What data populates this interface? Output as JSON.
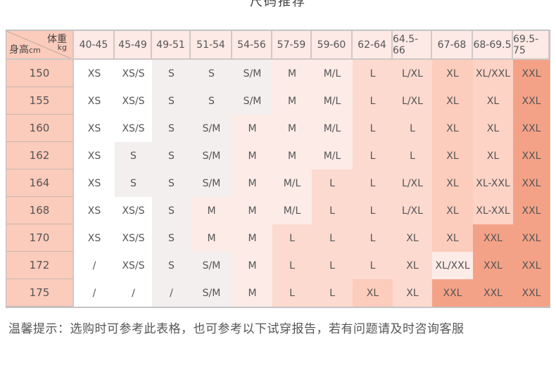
{
  "title": "尺码推荐",
  "corner": {
    "weight_label": "体重",
    "weight_unit": "kg",
    "height_label": "身高",
    "height_unit": "cm"
  },
  "weights": [
    "40-45",
    "45-49",
    "49-51",
    "51-54",
    "54-56",
    "57-59",
    "59-60",
    "62-64",
    "64.5-66",
    "67-68",
    "68-69.5",
    "69.5-75"
  ],
  "colors": {
    "w": "#ffffff",
    "g": "#f3efee",
    "p1": "#fdebe7",
    "p3": "#fcdad0",
    "p4": "#fcccbc",
    "p4b": "#fdd3c6",
    "p5": "#f4a287"
  },
  "rows": [
    {
      "height": "150",
      "sizes": [
        "XS",
        "XS/S",
        "S",
        "S",
        "S/M",
        "M",
        "M/L",
        "L",
        "L/XL",
        "XL",
        "XL/XXL",
        "XXL"
      ],
      "bg": [
        "w",
        "w",
        "g",
        "g",
        "g",
        "p1",
        "p1",
        "p3",
        "p3",
        "p4",
        "p4b",
        "p5"
      ]
    },
    {
      "height": "155",
      "sizes": [
        "XS",
        "XS/S",
        "S",
        "S",
        "S/M",
        "M",
        "M/L",
        "L",
        "L/XL",
        "XL",
        "XL",
        "XXL"
      ],
      "bg": [
        "w",
        "w",
        "g",
        "g",
        "g",
        "p1",
        "p1",
        "p3",
        "p3",
        "p4",
        "p4b",
        "p5"
      ]
    },
    {
      "height": "160",
      "sizes": [
        "XS",
        "XS/S",
        "S",
        "S/M",
        "M",
        "M",
        "M/L",
        "L",
        "L",
        "XL",
        "XL",
        "XXL"
      ],
      "bg": [
        "w",
        "w",
        "g",
        "g",
        "p1",
        "p1",
        "p1",
        "p3",
        "p3",
        "p4",
        "p4b",
        "p5"
      ]
    },
    {
      "height": "162",
      "sizes": [
        "XS",
        "S",
        "S",
        "S/M",
        "M",
        "M",
        "M/L",
        "L",
        "L",
        "XL",
        "XL",
        "XXL"
      ],
      "bg": [
        "w",
        "g",
        "g",
        "g",
        "p1",
        "p1",
        "p1",
        "p3",
        "p3",
        "p4",
        "p4b",
        "p5"
      ]
    },
    {
      "height": "164",
      "sizes": [
        "XS",
        "S",
        "S",
        "S/M",
        "M",
        "M/L",
        "L",
        "L",
        "L/XL",
        "XL",
        "XL-XXL",
        "XXL"
      ],
      "bg": [
        "w",
        "g",
        "g",
        "g",
        "p1",
        "p1",
        "p3",
        "p3",
        "p3",
        "p4",
        "p4b",
        "p5"
      ]
    },
    {
      "height": "168",
      "sizes": [
        "XS",
        "XS/S",
        "S",
        "M",
        "M",
        "M/L",
        "L",
        "L",
        "L/XL",
        "XL",
        "XL-XXL",
        "XXL"
      ],
      "bg": [
        "w",
        "w",
        "g",
        "p1",
        "p1",
        "p1",
        "p3",
        "p3",
        "p3",
        "p4",
        "p4b",
        "p5"
      ]
    },
    {
      "height": "170",
      "sizes": [
        "XS",
        "XS/S",
        "S",
        "M",
        "M",
        "L",
        "L",
        "L",
        "XL",
        "XL",
        "XXL",
        "XXL"
      ],
      "bg": [
        "w",
        "w",
        "g",
        "p1",
        "p1",
        "p3",
        "p3",
        "p3",
        "p3",
        "p4",
        "p5",
        "p5"
      ]
    },
    {
      "height": "172",
      "sizes": [
        "/",
        "XS/S",
        "S",
        "S/M",
        "M",
        "L",
        "L",
        "L",
        "XL",
        "XL/XXL",
        "XXL",
        "XXL"
      ],
      "bg": [
        "w",
        "w",
        "g",
        "g",
        "p1",
        "p3",
        "p3",
        "p3",
        "p3",
        "p1",
        "p5",
        "p5"
      ]
    },
    {
      "height": "175",
      "sizes": [
        "/",
        "/",
        "/",
        "S/M",
        "M",
        "L",
        "L",
        "XL",
        "XL",
        "XXL",
        "XXL",
        "XXL"
      ],
      "bg": [
        "w",
        "w",
        "g",
        "g",
        "p1",
        "p3",
        "p3",
        "p4",
        "p3",
        "p5",
        "p5",
        "p5"
      ]
    }
  ],
  "footer": "温馨提示：选购时可参考此表格，也可参考以下试穿报告，若有问题请及时咨询客服"
}
